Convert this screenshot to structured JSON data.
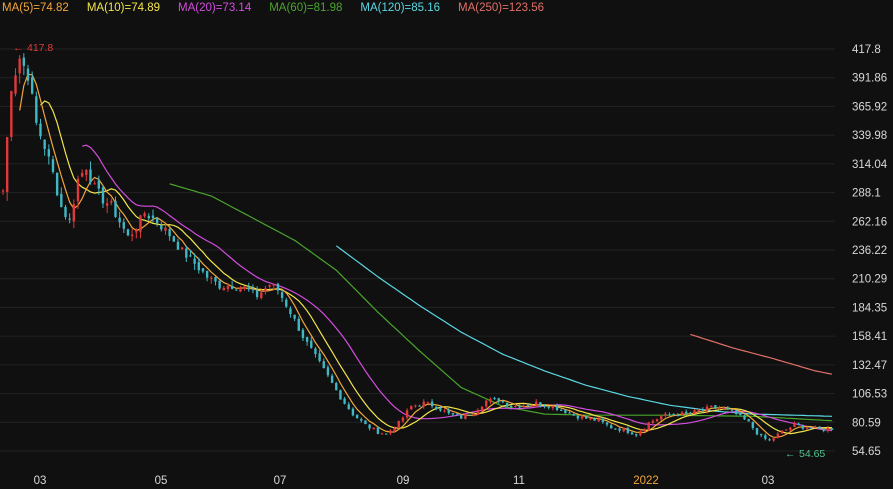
{
  "legend": {
    "ma5": "MA(5)=74.82",
    "ma10": "MA(10)=74.89",
    "ma20": "MA(20)=73.14",
    "ma60": "MA(60)=81.98",
    "ma120": "MA(120)=85.16",
    "ma250": "MA(250)=123.56"
  },
  "colors": {
    "background": "#101010",
    "up": "#e0393b",
    "down": "#3fb8c4",
    "ma5": "#f2a53a",
    "ma10": "#f2e64c",
    "ma20": "#d24ddd",
    "ma60": "#4aa62c",
    "ma120": "#5ad8e4",
    "ma250": "#e07068",
    "axis_text": "#d8d8d8",
    "grid": "#222222"
  },
  "chart_data": {
    "type": "candlestick",
    "ylim": [
      54.65,
      417.8
    ],
    "y_ticks": [
      "417.8",
      "391.86",
      "365.92",
      "339.98",
      "314.04",
      "288.1",
      "262.16",
      "236.22",
      "210.29",
      "184.35",
      "158.41",
      "132.47",
      "106.53",
      "80.59",
      "54.65"
    ],
    "x_ticks": [
      {
        "label": "03",
        "highlight": false
      },
      {
        "label": "05",
        "highlight": false
      },
      {
        "label": "07",
        "highlight": false
      },
      {
        "label": "09",
        "highlight": false
      },
      {
        "label": "11",
        "highlight": false
      },
      {
        "label": "2022",
        "highlight": true
      },
      {
        "label": "03",
        "highlight": false
      }
    ],
    "annotations": {
      "high": "417.8",
      "low": "54.65"
    },
    "close_anchors": [
      [
        0,
        290
      ],
      [
        2,
        385
      ],
      [
        4,
        410
      ],
      [
        6,
        395
      ],
      [
        8,
        350
      ],
      [
        10,
        330
      ],
      [
        12,
        305
      ],
      [
        14,
        275
      ],
      [
        16,
        262
      ],
      [
        18,
        300
      ],
      [
        20,
        312
      ],
      [
        22,
        292
      ],
      [
        24,
        282
      ],
      [
        26,
        276
      ],
      [
        28,
        262
      ],
      [
        30,
        248
      ],
      [
        32,
        256
      ],
      [
        34,
        270
      ],
      [
        37,
        262
      ],
      [
        40,
        250
      ],
      [
        43,
        235
      ],
      [
        46,
        224
      ],
      [
        49,
        212
      ],
      [
        52,
        204
      ],
      [
        55,
        204
      ],
      [
        58,
        202
      ],
      [
        61,
        195
      ],
      [
        64,
        205
      ],
      [
        66,
        200
      ],
      [
        69,
        180
      ],
      [
        72,
        158
      ],
      [
        75,
        140
      ],
      [
        78,
        122
      ],
      [
        81,
        103
      ],
      [
        84,
        88
      ],
      [
        87,
        78
      ],
      [
        90,
        72
      ],
      [
        92,
        70
      ],
      [
        95,
        80
      ],
      [
        98,
        95
      ],
      [
        101,
        98
      ],
      [
        104,
        95
      ],
      [
        107,
        88
      ],
      [
        110,
        85
      ],
      [
        113,
        90
      ],
      [
        116,
        100
      ],
      [
        119,
        101
      ],
      [
        122,
        95
      ],
      [
        125,
        96
      ],
      [
        128,
        98
      ],
      [
        131,
        96
      ],
      [
        134,
        92
      ],
      [
        137,
        87
      ],
      [
        140,
        84
      ],
      [
        143,
        82
      ],
      [
        146,
        76
      ],
      [
        149,
        74
      ],
      [
        152,
        70
      ],
      [
        155,
        80
      ],
      [
        158,
        86
      ],
      [
        161,
        88
      ],
      [
        164,
        88
      ],
      [
        167,
        91
      ],
      [
        170,
        94
      ],
      [
        173,
        93
      ],
      [
        176,
        88
      ],
      [
        179,
        80
      ],
      [
        182,
        67
      ],
      [
        184,
        64
      ],
      [
        187,
        72
      ],
      [
        190,
        78
      ],
      [
        193,
        76
      ],
      [
        196,
        74
      ],
      [
        199,
        75
      ]
    ],
    "ma60_points": [
      [
        40,
        296
      ],
      [
        50,
        285
      ],
      [
        60,
        265
      ],
      [
        70,
        245
      ],
      [
        80,
        218
      ],
      [
        90,
        180
      ],
      [
        100,
        145
      ],
      [
        110,
        112
      ],
      [
        120,
        95
      ],
      [
        130,
        88
      ],
      [
        140,
        87
      ],
      [
        160,
        87
      ],
      [
        180,
        86
      ],
      [
        199,
        82
      ]
    ],
    "ma120_points": [
      [
        80,
        240
      ],
      [
        90,
        212
      ],
      [
        100,
        186
      ],
      [
        110,
        162
      ],
      [
        120,
        142
      ],
      [
        130,
        127
      ],
      [
        140,
        114
      ],
      [
        150,
        104
      ],
      [
        160,
        96
      ],
      [
        170,
        91
      ],
      [
        180,
        88
      ],
      [
        190,
        87
      ],
      [
        199,
        86
      ]
    ],
    "ma250_points": [
      [
        165,
        160
      ],
      [
        175,
        148
      ],
      [
        185,
        138
      ],
      [
        195,
        127
      ],
      [
        199,
        124
      ]
    ]
  }
}
